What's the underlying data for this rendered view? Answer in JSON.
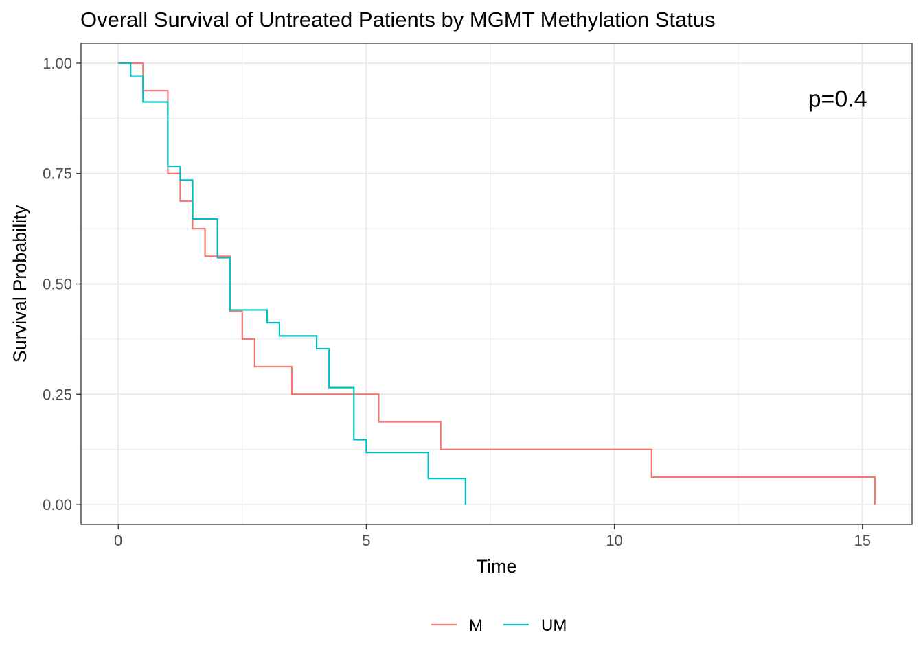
{
  "chart_data": {
    "type": "line",
    "subtype": "kaplan-meier step",
    "title": "Overall Survival of Untreated Patients by MGMT Methylation Status",
    "xlabel": "Time",
    "ylabel": "Survival Probability",
    "xlim": [
      -0.75,
      16.0
    ],
    "ylim": [
      -0.045,
      1.045
    ],
    "x_ticks": [
      0,
      5,
      10,
      15
    ],
    "x_tick_labels": [
      "0",
      "5",
      "10",
      "15"
    ],
    "y_ticks": [
      0,
      0.25,
      0.5,
      0.75,
      1.0
    ],
    "y_tick_labels": [
      "0.00",
      "0.25",
      "0.50",
      "0.75",
      "1.00"
    ],
    "grid": true,
    "legend_position": "bottom",
    "annotation": "p=0.4",
    "series": [
      {
        "name": "M",
        "color": "#F8766D",
        "x": [
          0,
          0.5,
          1.0,
          1.25,
          1.5,
          1.75,
          2.25,
          2.5,
          2.75,
          3.5,
          5.25,
          6.5,
          10.75,
          15.25
        ],
        "y": [
          1.0,
          0.9375,
          0.75,
          0.6875,
          0.625,
          0.5625,
          0.4375,
          0.375,
          0.3125,
          0.25,
          0.1875,
          0.125,
          0.0625,
          0.0
        ]
      },
      {
        "name": "UM",
        "color": "#00BFC4",
        "x": [
          0,
          0.25,
          0.5,
          1.0,
          1.25,
          1.5,
          2.0,
          2.25,
          3.0,
          3.25,
          4.0,
          4.25,
          4.75,
          5.0,
          6.25,
          7.0
        ],
        "y": [
          1.0,
          0.971,
          0.912,
          0.765,
          0.735,
          0.647,
          0.559,
          0.441,
          0.412,
          0.382,
          0.353,
          0.265,
          0.147,
          0.118,
          0.059,
          0.029
        ],
        "end_x": 7.0,
        "end_y": 0.0
      }
    ]
  }
}
